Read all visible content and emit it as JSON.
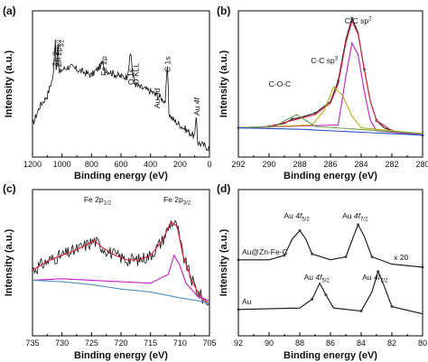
{
  "chart_data": [
    {
      "panel": "(a)",
      "type": "line",
      "xlabel": "Binding energy (eV)",
      "ylabel": "Intensity (a.u.)",
      "xlim": [
        1200,
        0
      ],
      "x_ticks": [
        "1200",
        "1000",
        "800",
        "600",
        "400",
        "200",
        "0"
      ],
      "series": [
        {
          "values": [
            [
              1200,
              0.22
            ],
            [
              1150,
              0.35
            ],
            [
              1100,
              0.42
            ],
            [
              1060,
              0.55
            ],
            [
              1045,
              0.82
            ],
            [
              1040,
              0.6
            ],
            [
              1025,
              0.78
            ],
            [
              1020,
              0.57
            ],
            [
              1000,
              0.6
            ],
            [
              950,
              0.62
            ],
            [
              900,
              0.6
            ],
            [
              850,
              0.58
            ],
            [
              800,
              0.56
            ],
            [
              760,
              0.6
            ],
            [
              725,
              0.64
            ],
            [
              710,
              0.6
            ],
            [
              650,
              0.57
            ],
            [
              600,
              0.55
            ],
            [
              560,
              0.55
            ],
            [
              532,
              0.72
            ],
            [
              520,
              0.55
            ],
            [
              500,
              0.5
            ],
            [
              480,
              0.48
            ],
            [
              400,
              0.45
            ],
            [
              350,
              0.42
            ],
            [
              300,
              0.38
            ],
            [
              285,
              0.62
            ],
            [
              275,
              0.3
            ],
            [
              250,
              0.26
            ],
            [
              200,
              0.22
            ],
            [
              150,
              0.18
            ],
            [
              100,
              0.14
            ],
            [
              88,
              0.3
            ],
            [
              80,
              0.1
            ],
            [
              40,
              0.08
            ],
            [
              0,
              0.06
            ]
          ]
        }
      ],
      "annotations": [
        {
          "text": "Zn 2p1/2",
          "main": "Zn 2p",
          "sub": "1/2",
          "x": 1045
        },
        {
          "text": "Zn 2p3/2",
          "main": "Zn 2p",
          "sub": "3/2",
          "x": 1022
        },
        {
          "text": "Fe 2p",
          "x": 715
        },
        {
          "text": "O 1s",
          "x": 532
        },
        {
          "text": "O KLL",
          "x": 500
        },
        {
          "text": "Au 3d",
          "x": 355
        },
        {
          "text": "C 1s",
          "x": 285
        },
        {
          "text": "Au 4f",
          "main": "Au ",
          "ital": "4f",
          "x": 86
        }
      ]
    },
    {
      "panel": "(b)",
      "type": "line",
      "xlabel": "Binding energy (eV)",
      "ylabel": "Intensity (a.u.)",
      "xlim": [
        292,
        280
      ],
      "x_ticks": [
        "292",
        "290",
        "288",
        "286",
        "284",
        "282",
        "280"
      ],
      "series": [
        {
          "color": "#222222",
          "values": [
            [
              292,
              0.2
            ],
            [
              291,
              0.2
            ],
            [
              290,
              0.21
            ],
            [
              289,
              0.23
            ],
            [
              288.5,
              0.26
            ],
            [
              288,
              0.27
            ],
            [
              287,
              0.3
            ],
            [
              286,
              0.38
            ],
            [
              285.5,
              0.52
            ],
            [
              285,
              0.8
            ],
            [
              284.6,
              0.95
            ],
            [
              284.2,
              0.85
            ],
            [
              283.8,
              0.6
            ],
            [
              283.4,
              0.38
            ],
            [
              283,
              0.25
            ],
            [
              282.5,
              0.2
            ],
            [
              282,
              0.18
            ],
            [
              281,
              0.16
            ],
            [
              280,
              0.15
            ]
          ]
        },
        {
          "color": "#e0203a",
          "values": [
            [
              292,
              0.2
            ],
            [
              290,
              0.21
            ],
            [
              288.5,
              0.25
            ],
            [
              287,
              0.29
            ],
            [
              286,
              0.37
            ],
            [
              285.5,
              0.5
            ],
            [
              285,
              0.78
            ],
            [
              284.6,
              0.93
            ],
            [
              284.2,
              0.84
            ],
            [
              283.8,
              0.6
            ],
            [
              283.4,
              0.38
            ],
            [
              283,
              0.25
            ],
            [
              282,
              0.18
            ],
            [
              280,
              0.15
            ]
          ]
        },
        {
          "color": "#c020c0",
          "values": [
            [
              292,
              0.2
            ],
            [
              285.5,
              0.22
            ],
            [
              285,
              0.55
            ],
            [
              284.6,
              0.78
            ],
            [
              284.2,
              0.7
            ],
            [
              283.8,
              0.45
            ],
            [
              283.4,
              0.25
            ],
            [
              283,
              0.18
            ],
            [
              280,
              0.15
            ]
          ]
        },
        {
          "color": "#b8b020",
          "values": [
            [
              292,
              0.2
            ],
            [
              287.2,
              0.22
            ],
            [
              286.4,
              0.32
            ],
            [
              285.8,
              0.48
            ],
            [
              285.2,
              0.42
            ],
            [
              284.6,
              0.28
            ],
            [
              284,
              0.2
            ],
            [
              280,
              0.16
            ]
          ]
        },
        {
          "color": "#70a050",
          "values": [
            [
              292,
              0.2
            ],
            [
              289.6,
              0.21
            ],
            [
              288.8,
              0.26
            ],
            [
              288.2,
              0.29
            ],
            [
              287.6,
              0.25
            ],
            [
              287,
              0.21
            ],
            [
              280,
              0.16
            ]
          ]
        },
        {
          "color": "#2050c0",
          "values": [
            [
              292,
              0.2
            ],
            [
              288,
              0.19
            ],
            [
              284,
              0.17
            ],
            [
              280,
              0.15
            ]
          ]
        }
      ],
      "annotations": [
        {
          "text": "C-C sp2",
          "main": "C-C sp",
          "sup": "2",
          "x": 284.2
        },
        {
          "text": "C-C sp3",
          "main": "C-C sp",
          "sup": "3",
          "x": 286.4
        },
        {
          "text": "C-O-C",
          "x": 289.3
        }
      ]
    },
    {
      "panel": "(c)",
      "type": "line",
      "xlabel": "Binding energy (eV)",
      "ylabel": "Intensity (a.u.)",
      "xlim": [
        735,
        705
      ],
      "x_ticks": [
        "735",
        "730",
        "725",
        "720",
        "715",
        "710",
        "705"
      ],
      "series": [
        {
          "color": "#111111",
          "noisy": true,
          "values": [
            [
              735,
              0.45
            ],
            [
              732,
              0.52
            ],
            [
              730,
              0.55
            ],
            [
              728,
              0.58
            ],
            [
              726,
              0.62
            ],
            [
              724.5,
              0.65
            ],
            [
              723,
              0.6
            ],
            [
              721,
              0.55
            ],
            [
              719,
              0.52
            ],
            [
              717,
              0.52
            ],
            [
              715,
              0.55
            ],
            [
              713,
              0.65
            ],
            [
              711.5,
              0.78
            ],
            [
              710.5,
              0.75
            ],
            [
              709.5,
              0.55
            ],
            [
              708,
              0.38
            ],
            [
              707,
              0.3
            ],
            [
              706,
              0.25
            ],
            [
              705,
              0.22
            ]
          ]
        },
        {
          "color": "#e0203a",
          "values": [
            [
              735,
              0.45
            ],
            [
              732,
              0.52
            ],
            [
              730,
              0.55
            ],
            [
              728,
              0.58
            ],
            [
              726,
              0.62
            ],
            [
              724.5,
              0.65
            ],
            [
              723,
              0.6
            ],
            [
              721,
              0.55
            ],
            [
              719,
              0.52
            ],
            [
              717,
              0.52
            ],
            [
              715,
              0.55
            ],
            [
              713,
              0.65
            ],
            [
              711.5,
              0.78
            ],
            [
              710.5,
              0.75
            ],
            [
              709.5,
              0.55
            ],
            [
              708,
              0.38
            ],
            [
              707,
              0.3
            ],
            [
              706,
              0.25
            ],
            [
              705,
              0.22
            ]
          ]
        },
        {
          "color": "#c020c0",
          "values": [
            [
              735,
              0.38
            ],
            [
              730,
              0.39
            ],
            [
              725,
              0.38
            ],
            [
              720,
              0.37
            ],
            [
              715,
              0.36
            ],
            [
              712,
              0.42
            ],
            [
              711,
              0.55
            ],
            [
              710,
              0.48
            ],
            [
              709,
              0.36
            ],
            [
              707,
              0.27
            ],
            [
              705,
              0.24
            ]
          ]
        },
        {
          "color": "#5090c0",
          "values": [
            [
              735,
              0.38
            ],
            [
              730,
              0.37
            ],
            [
              725,
              0.35
            ],
            [
              720,
              0.32
            ],
            [
              715,
              0.3
            ],
            [
              710,
              0.26
            ],
            [
              707,
              0.24
            ],
            [
              705,
              0.22
            ]
          ]
        }
      ],
      "annotations": [
        {
          "text": "Fe 2p1/2",
          "main": "Fe 2p",
          "sub": "1/2",
          "x": 724
        },
        {
          "text": "Fe 2p3/2",
          "main": "Fe 2p",
          "sub": "3/2",
          "x": 710.5
        }
      ]
    },
    {
      "panel": "(d)",
      "type": "line",
      "xlabel": "Binding energy (eV)",
      "ylabel": "Intensity (a.u.)",
      "xlim": [
        92,
        80
      ],
      "x_ticks": [
        "92",
        "90",
        "88",
        "86",
        "84",
        "82",
        "80"
      ],
      "series": [
        {
          "name": "Au@Zn-Fe-C",
          "color": "#111111",
          "values": [
            [
              92,
              0.52
            ],
            [
              90,
              0.52
            ],
            [
              89,
              0.55
            ],
            [
              88.5,
              0.66
            ],
            [
              88,
              0.72
            ],
            [
              87.6,
              0.66
            ],
            [
              87.2,
              0.56
            ],
            [
              86,
              0.52
            ],
            [
              85,
              0.54
            ],
            [
              84.5,
              0.68
            ],
            [
              84.2,
              0.76
            ],
            [
              83.8,
              0.68
            ],
            [
              83.3,
              0.54
            ],
            [
              82,
              0.49
            ],
            [
              80,
              0.47
            ]
          ]
        },
        {
          "name": "Au",
          "color": "#111111",
          "values": [
            [
              92,
              0.18
            ],
            [
              88,
              0.19
            ],
            [
              87.2,
              0.25
            ],
            [
              86.7,
              0.36
            ],
            [
              86.3,
              0.28
            ],
            [
              85.8,
              0.19
            ],
            [
              84,
              0.17
            ],
            [
              83.3,
              0.3
            ],
            [
              82.9,
              0.44
            ],
            [
              82.5,
              0.34
            ],
            [
              82,
              0.2
            ],
            [
              80,
              0.15
            ]
          ]
        }
      ],
      "annotations": [
        {
          "text": "Au 4f5/2",
          "main": "Au ",
          "ital": "4f",
          "sub": "5/2",
          "x": 88.2,
          "row": "upper"
        },
        {
          "text": "Au 4f7/2",
          "main": "Au ",
          "ital": "4f",
          "sub": "7/2",
          "x": 84.4,
          "row": "upper"
        },
        {
          "text": "x 20",
          "x": 81.4,
          "row": "upper"
        },
        {
          "text": "Au 4f5/2",
          "main": "Au ",
          "ital": "4f",
          "sub": "5/2",
          "x": 86.9,
          "row": "lower"
        },
        {
          "text": "Au 4f7/2",
          "main": "Au ",
          "ital": "4f",
          "sub": "7/2",
          "x": 83.1,
          "row": "lower"
        }
      ]
    }
  ]
}
